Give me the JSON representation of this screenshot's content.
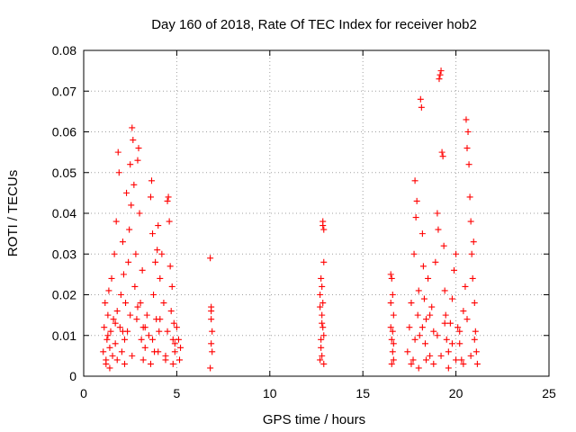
{
  "chart_data": {
    "type": "scatter",
    "title": "Day 160 of 2018, Rate Of TEC Index for receiver hob2",
    "xlabel": "GPS time / hours",
    "ylabel": "ROTI / TECUs",
    "xlim": [
      0,
      25
    ],
    "ylim": [
      0,
      0.08
    ],
    "xticks": [
      0,
      5,
      10,
      15,
      20,
      25
    ],
    "xtick_labels": [
      "0",
      "5",
      "10",
      "15",
      "20",
      "25"
    ],
    "yticks": [
      0,
      0.01,
      0.02,
      0.03,
      0.04,
      0.05,
      0.06,
      0.07,
      0.08
    ],
    "ytick_labels": [
      "0",
      "0.01",
      "0.02",
      "0.03",
      "0.04",
      "0.05",
      "0.06",
      "0.07",
      "0.08"
    ],
    "grid": true,
    "marker": "+",
    "color": "#ff0000",
    "series": [
      {
        "points": [
          [
            1.05,
            0.006
          ],
          [
            1.1,
            0.012
          ],
          [
            1.15,
            0.018
          ],
          [
            1.2,
            0.004
          ],
          [
            1.25,
            0.009
          ],
          [
            1.3,
            0.015
          ],
          [
            1.35,
            0.021
          ],
          [
            1.4,
            0.007
          ],
          [
            1.45,
            0.011
          ],
          [
            1.5,
            0.024
          ],
          [
            1.55,
            0.005
          ],
          [
            1.6,
            0.014
          ],
          [
            1.65,
            0.03
          ],
          [
            1.7,
            0.008
          ],
          [
            1.75,
            0.038
          ],
          [
            1.8,
            0.016
          ],
          [
            1.85,
            0.055
          ],
          [
            1.9,
            0.05
          ],
          [
            1.95,
            0.012
          ],
          [
            2.0,
            0.02
          ],
          [
            2.05,
            0.006
          ],
          [
            2.1,
            0.033
          ],
          [
            2.15,
            0.025
          ],
          [
            2.2,
            0.009
          ],
          [
            2.25,
            0.018
          ],
          [
            2.3,
            0.045
          ],
          [
            2.35,
            0.011
          ],
          [
            2.4,
            0.028
          ],
          [
            2.45,
            0.036
          ],
          [
            2.5,
            0.052
          ],
          [
            2.55,
            0.042
          ],
          [
            2.6,
            0.061
          ],
          [
            2.65,
            0.058
          ],
          [
            2.7,
            0.047
          ],
          [
            2.75,
            0.022
          ],
          [
            2.8,
            0.03
          ],
          [
            2.85,
            0.014
          ],
          [
            2.9,
            0.053
          ],
          [
            2.95,
            0.056
          ],
          [
            3.0,
            0.04
          ],
          [
            3.05,
            0.018
          ],
          [
            3.1,
            0.009
          ],
          [
            3.15,
            0.026
          ],
          [
            3.2,
            0.012
          ],
          [
            3.3,
            0.007
          ],
          [
            3.4,
            0.015
          ],
          [
            3.5,
            0.01
          ],
          [
            3.6,
            0.044
          ],
          [
            3.65,
            0.048
          ],
          [
            3.7,
            0.035
          ],
          [
            3.75,
            0.02
          ],
          [
            3.8,
            0.006
          ],
          [
            3.85,
            0.028
          ],
          [
            3.9,
            0.014
          ],
          [
            3.95,
            0.031
          ],
          [
            4.0,
            0.037
          ],
          [
            4.05,
            0.011
          ],
          [
            4.1,
            0.024
          ],
          [
            4.2,
            0.03
          ],
          [
            4.3,
            0.018
          ],
          [
            4.4,
            0.005
          ],
          [
            4.5,
            0.043
          ],
          [
            4.55,
            0.044
          ],
          [
            4.6,
            0.038
          ],
          [
            4.65,
            0.027
          ],
          [
            4.7,
            0.016
          ],
          [
            4.75,
            0.022
          ],
          [
            4.8,
            0.009
          ],
          [
            4.85,
            0.013
          ],
          [
            4.9,
            0.006
          ],
          [
            5.0,
            0.012
          ],
          [
            5.1,
            0.009
          ],
          [
            5.15,
            0.004
          ],
          [
            5.2,
            0.007
          ],
          [
            1.2,
            0.003
          ],
          [
            1.4,
            0.002
          ],
          [
            1.8,
            0.004
          ],
          [
            2.2,
            0.003
          ],
          [
            2.6,
            0.005
          ],
          [
            3.2,
            0.004
          ],
          [
            3.6,
            0.003
          ],
          [
            4.0,
            0.006
          ],
          [
            4.4,
            0.004
          ],
          [
            4.8,
            0.003
          ],
          [
            1.3,
            0.01
          ],
          [
            1.7,
            0.013
          ],
          [
            2.1,
            0.011
          ],
          [
            2.5,
            0.015
          ],
          [
            2.9,
            0.017
          ],
          [
            3.3,
            0.012
          ],
          [
            3.7,
            0.009
          ],
          [
            4.1,
            0.014
          ],
          [
            4.5,
            0.011
          ],
          [
            4.9,
            0.008
          ]
        ]
      },
      {
        "points": [
          [
            6.8,
            0.029
          ],
          [
            6.85,
            0.017
          ],
          [
            6.85,
            0.014
          ],
          [
            6.9,
            0.011
          ],
          [
            6.85,
            0.008
          ],
          [
            6.9,
            0.006
          ],
          [
            6.8,
            0.002
          ],
          [
            6.85,
            0.016
          ]
        ]
      },
      {
        "points": [
          [
            12.7,
            0.02
          ],
          [
            12.75,
            0.024
          ],
          [
            12.8,
            0.015
          ],
          [
            12.85,
            0.038
          ],
          [
            12.85,
            0.037
          ],
          [
            12.9,
            0.036
          ],
          [
            12.9,
            0.028
          ],
          [
            12.75,
            0.009
          ],
          [
            12.8,
            0.005
          ],
          [
            12.85,
            0.012
          ],
          [
            12.9,
            0.003
          ],
          [
            12.7,
            0.017
          ],
          [
            12.75,
            0.007
          ],
          [
            12.8,
            0.022
          ],
          [
            12.85,
            0.018
          ],
          [
            12.9,
            0.01
          ],
          [
            12.7,
            0.004
          ],
          [
            12.8,
            0.013
          ]
        ]
      },
      {
        "points": [
          [
            16.5,
            0.025
          ],
          [
            16.55,
            0.024
          ],
          [
            16.6,
            0.02
          ],
          [
            16.65,
            0.015
          ],
          [
            16.5,
            0.012
          ],
          [
            16.55,
            0.009
          ],
          [
            16.6,
            0.006
          ],
          [
            16.65,
            0.004
          ],
          [
            16.5,
            0.018
          ],
          [
            16.6,
            0.011
          ],
          [
            16.55,
            0.003
          ],
          [
            16.65,
            0.008
          ]
        ]
      },
      {
        "points": [
          [
            17.4,
            0.006
          ],
          [
            17.5,
            0.012
          ],
          [
            17.6,
            0.018
          ],
          [
            17.7,
            0.004
          ],
          [
            17.75,
            0.03
          ],
          [
            17.8,
            0.048
          ],
          [
            17.85,
            0.039
          ],
          [
            17.9,
            0.043
          ],
          [
            17.95,
            0.015
          ],
          [
            18.0,
            0.021
          ],
          [
            18.05,
            0.01
          ],
          [
            18.1,
            0.068
          ],
          [
            18.15,
            0.066
          ],
          [
            18.2,
            0.035
          ],
          [
            18.25,
            0.027
          ],
          [
            18.3,
            0.019
          ],
          [
            18.35,
            0.008
          ],
          [
            18.4,
            0.014
          ],
          [
            18.5,
            0.024
          ],
          [
            18.6,
            0.005
          ],
          [
            18.7,
            0.017
          ],
          [
            18.8,
            0.011
          ],
          [
            18.9,
            0.028
          ],
          [
            19.0,
            0.04
          ],
          [
            19.05,
            0.036
          ],
          [
            19.1,
            0.073
          ],
          [
            19.15,
            0.074
          ],
          [
            19.2,
            0.075
          ],
          [
            19.25,
            0.055
          ],
          [
            19.3,
            0.054
          ],
          [
            19.35,
            0.032
          ],
          [
            19.4,
            0.021
          ],
          [
            19.45,
            0.015
          ],
          [
            19.5,
            0.009
          ],
          [
            19.6,
            0.006
          ],
          [
            19.7,
            0.013
          ],
          [
            19.8,
            0.019
          ],
          [
            19.9,
            0.026
          ],
          [
            20.0,
            0.03
          ],
          [
            20.1,
            0.012
          ],
          [
            20.2,
            0.008
          ],
          [
            20.3,
            0.004
          ],
          [
            20.4,
            0.016
          ],
          [
            20.5,
            0.022
          ],
          [
            20.55,
            0.063
          ],
          [
            20.6,
            0.056
          ],
          [
            20.65,
            0.06
          ],
          [
            20.7,
            0.052
          ],
          [
            20.75,
            0.044
          ],
          [
            20.8,
            0.038
          ],
          [
            20.85,
            0.03
          ],
          [
            20.9,
            0.024
          ],
          [
            20.95,
            0.033
          ],
          [
            21.0,
            0.018
          ],
          [
            21.05,
            0.011
          ],
          [
            21.1,
            0.006
          ],
          [
            21.15,
            0.003
          ],
          [
            17.6,
            0.003
          ],
          [
            18.0,
            0.002
          ],
          [
            18.4,
            0.004
          ],
          [
            18.8,
            0.003
          ],
          [
            19.2,
            0.005
          ],
          [
            19.6,
            0.002
          ],
          [
            20.0,
            0.004
          ],
          [
            20.4,
            0.003
          ],
          [
            20.8,
            0.005
          ],
          [
            17.8,
            0.009
          ],
          [
            18.2,
            0.012
          ],
          [
            18.6,
            0.015
          ],
          [
            19.0,
            0.01
          ],
          [
            19.4,
            0.013
          ],
          [
            19.8,
            0.008
          ],
          [
            20.2,
            0.011
          ],
          [
            20.6,
            0.014
          ],
          [
            21.0,
            0.009
          ]
        ]
      }
    ]
  }
}
